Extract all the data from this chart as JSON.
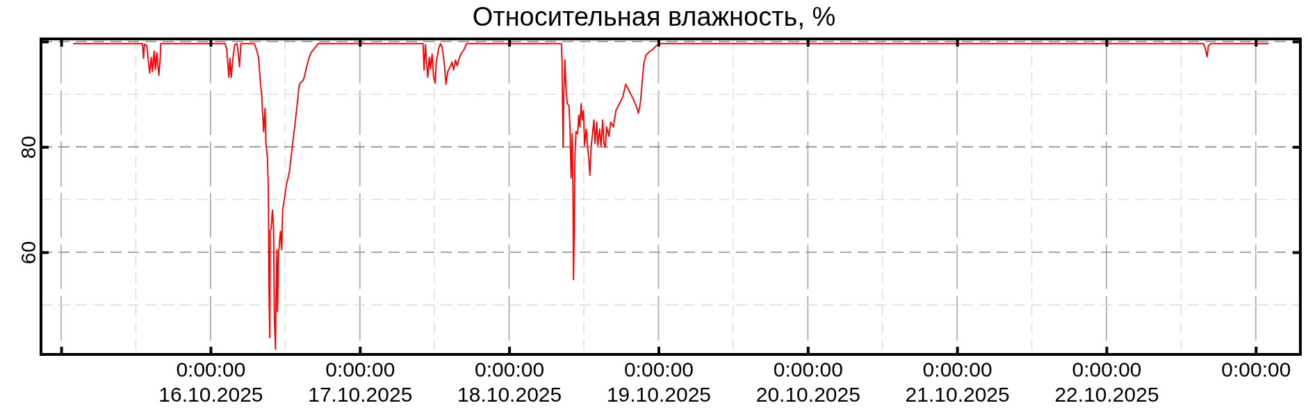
{
  "chart_data": {
    "type": "line",
    "title": "Относительная влажность, %",
    "x": [
      "2025-10-15T02:00",
      "2025-10-15T13:04",
      "2025-10-15T13:13",
      "2025-10-15T13:23",
      "2025-10-15T13:44",
      "2025-10-15T14:13",
      "2025-10-15T14:28",
      "2025-10-15T14:40",
      "2025-10-15T14:56",
      "2025-10-15T15:08",
      "2025-10-15T15:22",
      "2025-10-15T15:32",
      "2025-10-15T15:42",
      "2025-10-15T15:54",
      "2025-10-15T16:00",
      "2025-10-16T02:19",
      "2025-10-16T02:35",
      "2025-10-16T02:57",
      "2025-10-16T03:08",
      "2025-10-16T03:19",
      "2025-10-16T03:37",
      "2025-10-16T03:53",
      "2025-10-16T04:15",
      "2025-10-16T04:26",
      "2025-10-16T04:39",
      "2025-10-16T04:53",
      "2025-10-16T07:03",
      "2025-10-16T07:25",
      "2025-10-16T07:43",
      "2025-10-16T07:59",
      "2025-10-16T08:14",
      "2025-10-16T08:28",
      "2025-10-16T08:32",
      "2025-10-16T08:46",
      "2025-10-16T08:54",
      "2025-10-16T09:08",
      "2025-10-16T09:17",
      "2025-10-16T09:24",
      "2025-10-16T09:31",
      "2025-10-16T09:35",
      "2025-10-16T09:44",
      "2025-10-16T09:57",
      "2025-10-16T10:08",
      "2025-10-16T10:15",
      "2025-10-16T10:26",
      "2025-10-16T10:33",
      "2025-10-16T10:40",
      "2025-10-16T10:46",
      "2025-10-16T10:55",
      "2025-10-16T11:04",
      "2025-10-16T11:15",
      "2025-10-16T11:26",
      "2025-10-16T11:35",
      "2025-10-16T11:53",
      "2025-10-16T12:11",
      "2025-10-16T12:27",
      "2025-10-16T12:42",
      "2025-10-16T13:12",
      "2025-10-16T13:34",
      "2025-10-16T13:56",
      "2025-10-16T14:12",
      "2025-10-16T14:23",
      "2025-10-16T14:52",
      "2025-10-16T15:03",
      "2025-10-16T15:26",
      "2025-10-16T15:48",
      "2025-10-16T16:10",
      "2025-10-16T16:33",
      "2025-10-16T16:55",
      "2025-10-16T17:17",
      "2025-10-17T10:09",
      "2025-10-17T10:19",
      "2025-10-17T10:32",
      "2025-10-17T10:54",
      "2025-10-17T11:10",
      "2025-10-17T11:21",
      "2025-10-17T11:37",
      "2025-10-17T11:50",
      "2025-10-17T12:06",
      "2025-10-17T12:17",
      "2025-10-17T12:40",
      "2025-10-17T12:57",
      "2025-10-17T13:13",
      "2025-10-17T13:35",
      "2025-10-17T13:50",
      "2025-10-17T14:08",
      "2025-10-17T14:31",
      "2025-10-17T14:49",
      "2025-10-17T15:04",
      "2025-10-17T15:22",
      "2025-10-17T15:38",
      "2025-10-17T16:01",
      "2025-10-17T16:23",
      "2025-10-17T16:45",
      "2025-10-17T17:08",
      "2025-10-18T08:23",
      "2025-10-18T08:30",
      "2025-10-18T08:40",
      "2025-10-18T08:48",
      "2025-10-18T08:57",
      "2025-10-18T09:08",
      "2025-10-18T09:20",
      "2025-10-18T09:37",
      "2025-10-18T09:47",
      "2025-10-18T09:57",
      "2025-10-18T10:08",
      "2025-10-18T10:16",
      "2025-10-18T10:20",
      "2025-10-18T10:27",
      "2025-10-18T10:34",
      "2025-10-18T10:44",
      "2025-10-18T11:00",
      "2025-10-18T11:11",
      "2025-10-18T11:22",
      "2025-10-18T11:34",
      "2025-10-18T11:44",
      "2025-10-18T11:56",
      "2025-10-18T12:07",
      "2025-10-18T12:23",
      "2025-10-18T12:36",
      "2025-10-18T12:47",
      "2025-10-18T12:58",
      "2025-10-18T13:10",
      "2025-10-18T13:21",
      "2025-10-18T13:37",
      "2025-10-18T13:48",
      "2025-10-18T14:04",
      "2025-10-18T14:15",
      "2025-10-18T14:32",
      "2025-10-18T14:46",
      "2025-10-18T15:02",
      "2025-10-18T15:13",
      "2025-10-18T15:28",
      "2025-10-18T15:39",
      "2025-10-18T16:02",
      "2025-10-18T16:19",
      "2025-10-18T16:46",
      "2025-10-18T17:09",
      "2025-10-18T17:43",
      "2025-10-18T18:16",
      "2025-10-18T18:43",
      "2025-10-18T19:05",
      "2025-10-18T19:56",
      "2025-10-18T20:30",
      "2025-10-18T20:47",
      "2025-10-18T21:04",
      "2025-10-18T21:19",
      "2025-10-18T21:37",
      "2025-10-18T21:59",
      "2025-10-18T22:33",
      "2025-10-18T23:06",
      "2025-10-18T23:28",
      "2025-10-19T00:02",
      "2025-10-22T15:36",
      "2025-10-22T15:48",
      "2025-10-22T16:11",
      "2025-10-22T16:23",
      "2025-10-22T16:47",
      "2025-10-23T02:00"
    ],
    "values": [
      99.6,
      99.6,
      96.8,
      99.5,
      99.3,
      94.0,
      97.0,
      94.3,
      98.2,
      94.7,
      97.9,
      95.6,
      93.6,
      96.8,
      99.6,
      99.6,
      98.7,
      93.2,
      96.8,
      93.2,
      97.0,
      99.4,
      99.6,
      97.9,
      95.2,
      99.6,
      99.6,
      98.3,
      97.0,
      92.6,
      89.5,
      84.2,
      82.9,
      87.3,
      80.7,
      78.1,
      72.4,
      52.6,
      43.8,
      64.0,
      64.5,
      68.0,
      64.5,
      47.8,
      41.6,
      53.1,
      60.5,
      48.7,
      58.8,
      61.8,
      64.0,
      60.5,
      68.0,
      70.2,
      72.8,
      74.1,
      75.5,
      80.7,
      84.2,
      88.2,
      91.3,
      92.1,
      92.6,
      93.2,
      95.2,
      96.8,
      97.9,
      98.5,
      99.0,
      99.6,
      99.6,
      94.6,
      99.4,
      93.2,
      97.0,
      94.8,
      97.6,
      93.5,
      92.1,
      96.1,
      98.7,
      99.6,
      99.0,
      95.7,
      91.9,
      94.3,
      95.2,
      96.1,
      94.6,
      96.5,
      95.4,
      97.0,
      97.9,
      98.5,
      99.6,
      99.6,
      96.1,
      79.9,
      90.4,
      96.5,
      91.3,
      88.2,
      87.8,
      83.4,
      74.1,
      82.5,
      69.3,
      54.8,
      64.5,
      78.1,
      82.9,
      82.5,
      86.0,
      83.8,
      88.2,
      85.1,
      86.9,
      80.3,
      83.4,
      79.9,
      78.1,
      74.6,
      79.9,
      82.0,
      85.1,
      80.7,
      84.7,
      80.3,
      83.4,
      80.1,
      85.1,
      80.7,
      79.9,
      83.8,
      82.0,
      84.7,
      83.8,
      86.9,
      88.2,
      89.5,
      91.9,
      91.1,
      89.1,
      87.5,
      86.4,
      88.2,
      91.3,
      95.7,
      97.4,
      98.1,
      98.5,
      99.0,
      99.6,
      99.6,
      99.0,
      97.1,
      99.2,
      99.6,
      99.6
    ],
    "color": "#ff0000",
    "xlim": [
      "2025-10-14T20:45",
      "2025-10-23T07:10"
    ],
    "ylim": [
      40.6,
      100.5
    ],
    "xticks": [
      {
        "value": "2025-10-15",
        "label": null
      },
      {
        "value": "2025-10-15T12:00",
        "label": null
      },
      {
        "value": "2025-10-16",
        "label": "0:00:00\n16.10.2025"
      },
      {
        "value": "2025-10-16T12:00",
        "label": null
      },
      {
        "value": "2025-10-17",
        "label": "0:00:00\n17.10.2025"
      },
      {
        "value": "2025-10-17T12:00",
        "label": null
      },
      {
        "value": "2025-10-18",
        "label": "0:00:00\n18.10.2025"
      },
      {
        "value": "2025-10-18T12:00",
        "label": null
      },
      {
        "value": "2025-10-19",
        "label": "0:00:00\n19.10.2025"
      },
      {
        "value": "2025-10-19T12:00",
        "label": null
      },
      {
        "value": "2025-10-20",
        "label": "0:00:00\n20.10.2025"
      },
      {
        "value": "2025-10-20T12:00",
        "label": null
      },
      {
        "value": "2025-10-21",
        "label": "0:00:00\n21.10.2025"
      },
      {
        "value": "2025-10-21T12:00",
        "label": null
      },
      {
        "value": "2025-10-22",
        "label": "0:00:00\n22.10.2025"
      },
      {
        "value": "2025-10-22T12:00",
        "label": null
      },
      {
        "value": "2025-10-23",
        "label": "0:00:00"
      }
    ],
    "yticks": [
      {
        "value": 50,
        "label": null
      },
      60,
      {
        "value": 70,
        "label": null
      },
      80,
      {
        "value": 90,
        "label": null
      },
      {
        "value": 100,
        "label": null
      }
    ],
    "grid": true
  }
}
